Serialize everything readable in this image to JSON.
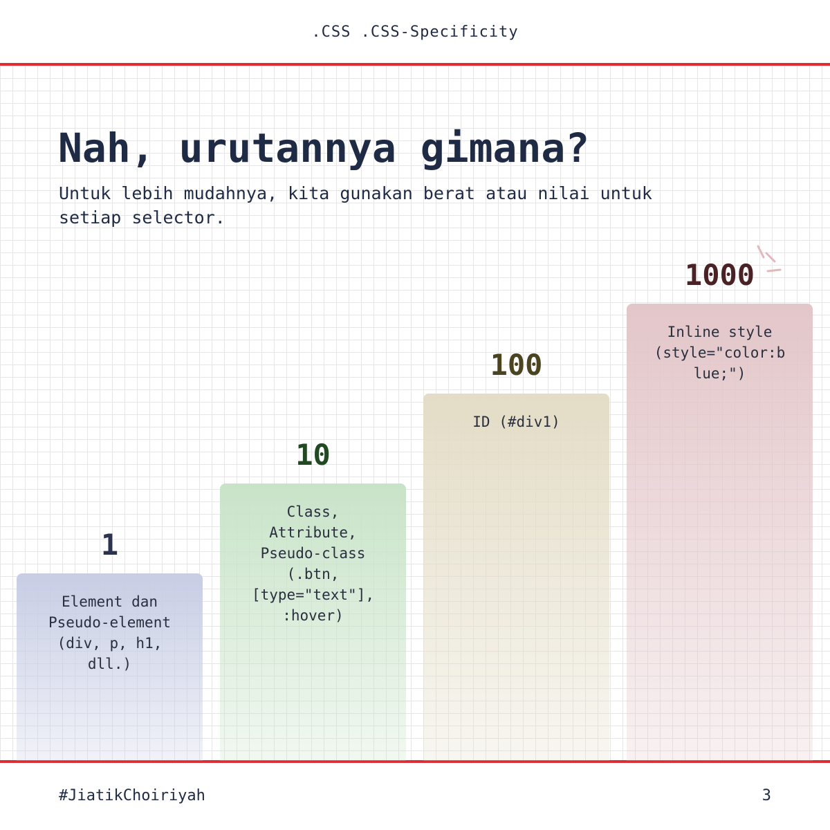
{
  "header": {
    "text": ".CSS .CSS-Specificity"
  },
  "title": "Nah, urutannya gimana?",
  "subtitle": "Untuk lebih mudahnya, kita gunakan berat atau nilai untuk\nsetiap selector.",
  "steps": [
    {
      "value": "1",
      "label": "Element dan\nPseudo-element\n(div, p, h1,\ndll.)"
    },
    {
      "value": "10",
      "label": "Class,\nAttribute,\nPseudo-class\n(.btn,\n[type=\"text\"],\n:hover)"
    },
    {
      "value": "100",
      "label": "ID (#div1)"
    },
    {
      "value": "1000",
      "label": "Inline style\n(style=\"color:b\nlue;\")"
    }
  ],
  "footer": {
    "author": "#JiatikChoiriyah",
    "page": "3"
  }
}
